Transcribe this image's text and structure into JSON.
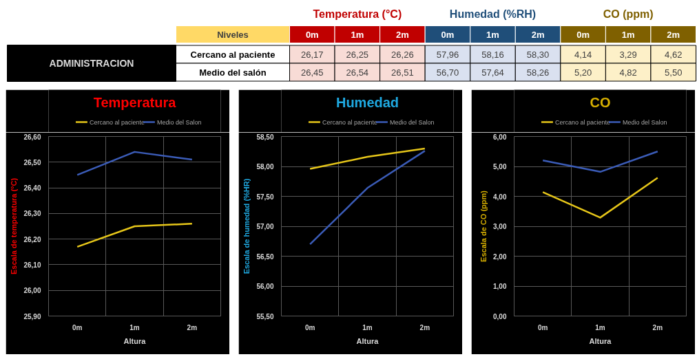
{
  "chart_data": [
    {
      "type": "other",
      "categories": [
        "0m",
        "1m",
        "2m",
        "0m",
        "1m",
        "2m",
        "0m",
        "1m",
        "2m"
      ],
      "colors": [
        "#c00000",
        "#c00000",
        "#c00000",
        "#1f4e79",
        "#1f4e79",
        "#1f4e79",
        "#7f6000",
        "#7f6000",
        "#7f6000"
      ],
      "series": [
        {
          "name": "Cercano al paciente",
          "values": [
            26.17,
            26.25,
            26.26,
            57.96,
            58.16,
            58.3,
            4.14,
            3.29,
            4.62
          ],
          "value_labels": [
            "26,17",
            "26,25",
            "26,26",
            "57,96",
            "58,16",
            "58,30",
            "4,14",
            "3,29",
            "4,62"
          ],
          "colors": [
            "#f8dcd6",
            "#f8dcd6",
            "#f8dcd6",
            "#dae1f0",
            "#dae1f0",
            "#dae1f0",
            "#fdf0c8",
            "#fdf0c8",
            "#fdf0c8"
          ]
        },
        {
          "name": "Medio del salón",
          "values": [
            26.45,
            26.54,
            26.51,
            56.7,
            57.64,
            58.26,
            5.2,
            4.82,
            5.5
          ],
          "value_labels": [
            "26,45",
            "26,54",
            "26,51",
            "56,70",
            "57,64",
            "58,26",
            "5,20",
            "4,82",
            "5,50"
          ],
          "colors": [
            "#f8dcd6",
            "#f8dcd6",
            "#f8dcd6",
            "#dae1f0",
            "#dae1f0",
            "#dae1f0",
            "#fdf0c8",
            "#fdf0c8",
            "#fdf0c8"
          ]
        }
      ],
      "annotations": [
        "Temperatura (°C)",
        "Humedad (%RH)",
        "CO (ppm)",
        "Niveles",
        "ADMINISTRACION"
      ]
    },
    {
      "type": "line",
      "title": "Temperatura",
      "xlabel": "Altura",
      "ylabel": "Escala de temperatura (°C)",
      "categories": [
        "0m",
        "1m",
        "2m"
      ],
      "series": [
        {
          "name": "Cercano al paciente",
          "color": "#e6c619",
          "values": [
            26.17,
            26.25,
            26.26
          ]
        },
        {
          "name": "Medio del Salon",
          "color": "#3b5cb8",
          "values": [
            26.45,
            26.54,
            26.51
          ]
        }
      ],
      "ylim": [
        25.9,
        26.6
      ],
      "yticks": [
        {
          "value": 25.9,
          "label": "25,90"
        },
        {
          "value": 26.0,
          "label": "26,00"
        },
        {
          "value": 26.1,
          "label": "26,10"
        },
        {
          "value": 26.2,
          "label": "26,20"
        },
        {
          "value": 26.3,
          "label": "26,30"
        },
        {
          "value": 26.4,
          "label": "26,40"
        },
        {
          "value": 26.5,
          "label": "26,50"
        },
        {
          "value": 26.6,
          "label": "26,60"
        }
      ],
      "grid": true,
      "legend": "top"
    },
    {
      "type": "line",
      "title": "Humedad",
      "xlabel": "Altura",
      "ylabel": "Escala de humedad (%HR)",
      "categories": [
        "0m",
        "1m",
        "2m"
      ],
      "series": [
        {
          "name": "Cercano al paciente",
          "color": "#e6c619",
          "values": [
            57.96,
            58.16,
            58.3
          ]
        },
        {
          "name": "Medio del Salon",
          "color": "#3b5cb8",
          "values": [
            56.7,
            57.64,
            58.26
          ]
        }
      ],
      "ylim": [
        55.5,
        58.5
      ],
      "yticks": [
        {
          "value": 55.5,
          "label": "55,50"
        },
        {
          "value": 56.0,
          "label": "56,00"
        },
        {
          "value": 56.5,
          "label": "56,50"
        },
        {
          "value": 57.0,
          "label": "57,00"
        },
        {
          "value": 57.5,
          "label": "57,50"
        },
        {
          "value": 58.0,
          "label": "58,00"
        },
        {
          "value": 58.5,
          "label": "58,50"
        }
      ],
      "grid": true,
      "legend": "top"
    },
    {
      "type": "line",
      "title": "CO",
      "xlabel": "Altura",
      "ylabel": "Escala de CO (ppm)",
      "categories": [
        "0m",
        "1m",
        "2m"
      ],
      "series": [
        {
          "name": "Cercano al paciente",
          "color": "#e6c619",
          "values": [
            4.14,
            3.29,
            4.62
          ]
        },
        {
          "name": "Medio del Salon",
          "color": "#3b5cb8",
          "values": [
            5.2,
            4.82,
            5.5
          ]
        }
      ],
      "ylim": [
        0,
        6
      ],
      "yticks": [
        {
          "value": 0,
          "label": "0,00"
        },
        {
          "value": 1,
          "label": "1,00"
        },
        {
          "value": 2,
          "label": "2,00"
        },
        {
          "value": 3,
          "label": "3,00"
        },
        {
          "value": 4,
          "label": "4,00"
        },
        {
          "value": 5,
          "label": "5,00"
        },
        {
          "value": 6,
          "label": "6,00"
        }
      ],
      "grid": true,
      "legend": "top"
    }
  ]
}
